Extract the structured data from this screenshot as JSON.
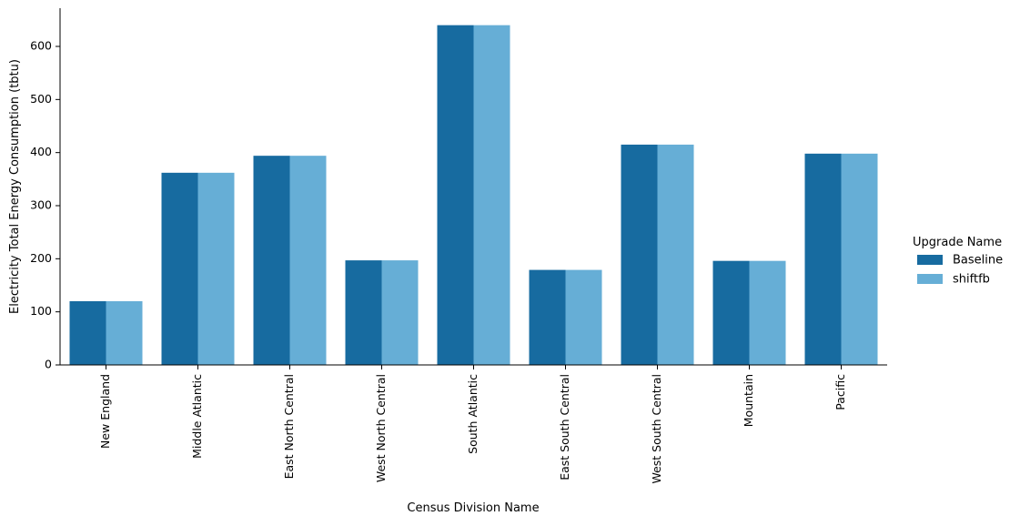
{
  "chart_data": {
    "type": "bar",
    "title": "",
    "xlabel": "Census Division Name",
    "ylabel": "Electricity Total Energy Consumption (tbtu)",
    "categories": [
      "New England",
      "Middle Atlantic",
      "East North Central",
      "West North Central",
      "South Atlantic",
      "East South Central",
      "West South Central",
      "Mountain",
      "Pacific"
    ],
    "series": [
      {
        "name": "Baseline",
        "color": "#176ba0",
        "values": [
          120,
          362,
          394,
          197,
          640,
          179,
          415,
          196,
          398
        ]
      },
      {
        "name": "shiftfb",
        "color": "#66aed6",
        "values": [
          120,
          362,
          394,
          197,
          640,
          179,
          415,
          196,
          398
        ]
      }
    ],
    "ylim": [
      0,
      672
    ],
    "yticks": [
      0,
      100,
      200,
      300,
      400,
      500,
      600
    ],
    "ytick_labels": [
      "0",
      "100",
      "200",
      "300",
      "400",
      "500",
      "600"
    ],
    "grid": false,
    "legend": {
      "title": "Upgrade Name",
      "placement": "right"
    }
  }
}
